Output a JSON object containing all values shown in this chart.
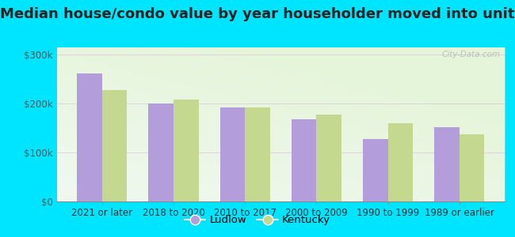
{
  "title": "Median house/condo value by year householder moved into unit",
  "categories": [
    "2021 or later",
    "2018 to 2020",
    "2010 to 2017",
    "2000 to 2009",
    "1990 to 1999",
    "1989 or earlier"
  ],
  "ludlow_values": [
    262000,
    200000,
    193000,
    168000,
    128000,
    152000
  ],
  "kentucky_values": [
    228000,
    208000,
    193000,
    178000,
    160000,
    137000
  ],
  "ludlow_color": "#b39ddb",
  "kentucky_color": "#c5d890",
  "background_outer": "#00e5ff",
  "yticks": [
    0,
    100000,
    200000,
    300000
  ],
  "ylabels": [
    "$0",
    "$100k",
    "$200k",
    "$300k"
  ],
  "ylim": [
    0,
    315000
  ],
  "bar_width": 0.35,
  "title_fontsize": 13,
  "tick_fontsize": 8.5,
  "legend_labels": [
    "Ludlow",
    "Kentucky"
  ],
  "watermark": "City-Data.com"
}
